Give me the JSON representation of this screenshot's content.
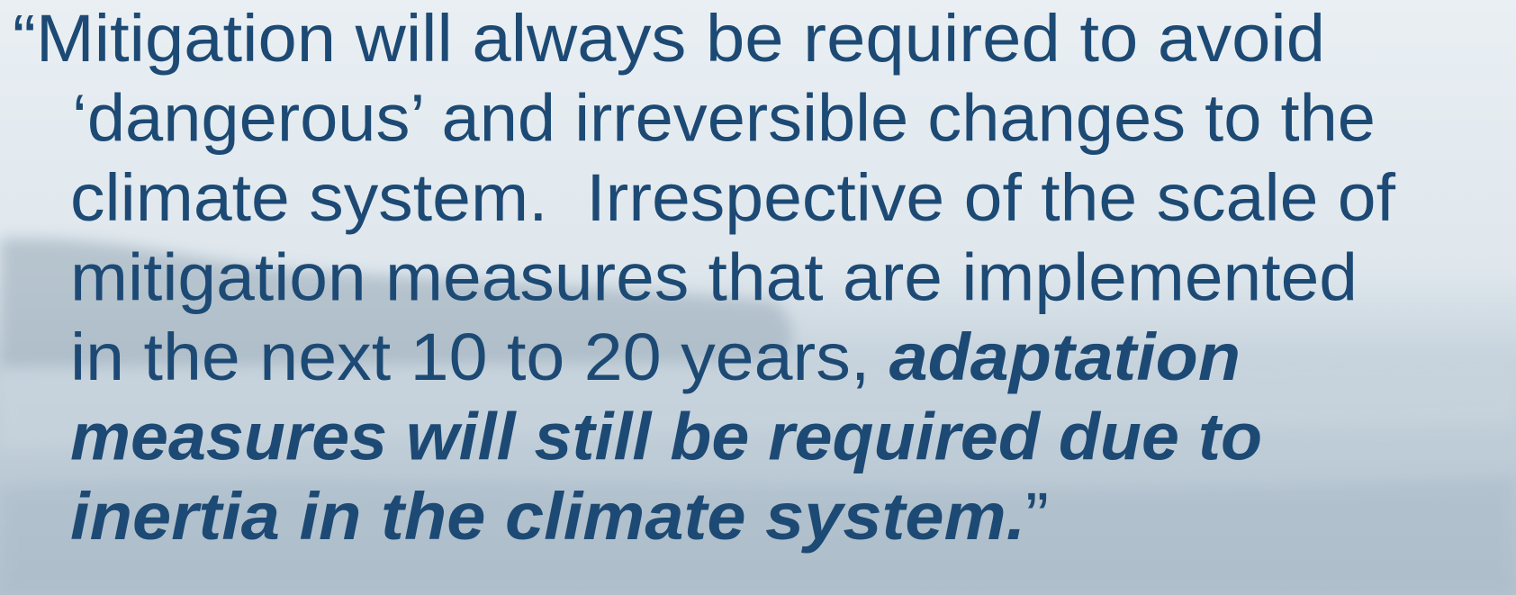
{
  "quote": {
    "color": "#1d4a74",
    "lines": [
      [
        {
          "text": "“Mitigation will always be required to avoid",
          "emphasis": false
        }
      ],
      [
        {
          "text": "‘dangerous’ and irreversible changes to the",
          "emphasis": false
        }
      ],
      [
        {
          "text": "climate system.  Irrespective of the scale of",
          "emphasis": false
        }
      ],
      [
        {
          "text": "mitigation measures that are implemented",
          "emphasis": false
        }
      ],
      [
        {
          "text": "in the next 10 to 20 years, ",
          "emphasis": false
        },
        {
          "text": "adaptation",
          "emphasis": true
        }
      ],
      [
        {
          "text": "measures will still be required due to",
          "emphasis": true
        }
      ],
      [
        {
          "text": "inertia in the climate system.",
          "emphasis": true
        },
        {
          "text": "”",
          "emphasis": false
        }
      ]
    ]
  }
}
